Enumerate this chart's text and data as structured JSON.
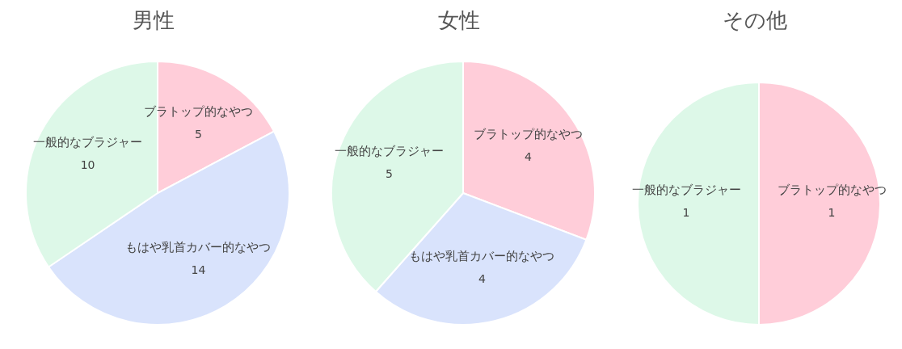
{
  "chart_data": [
    {
      "type": "pie",
      "title": "男性",
      "categories": [
        "ブラトップ的なやつ",
        "もはや乳首カバー的なやつ",
        "一般的なブラジャー"
      ],
      "values": [
        5,
        14,
        10
      ],
      "colors": [
        "#ffcdd9",
        "#d9e3fc",
        "#ddf8e8"
      ],
      "data_labels": true,
      "legend": false
    },
    {
      "type": "pie",
      "title": "女性",
      "categories": [
        "ブラトップ的なやつ",
        "もはや乳首カバー的なやつ",
        "一般的なブラジャー"
      ],
      "values": [
        4,
        4,
        5
      ],
      "colors": [
        "#ffcdd9",
        "#d9e3fc",
        "#ddf8e8"
      ],
      "data_labels": true,
      "legend": false
    },
    {
      "type": "pie",
      "title": "その他",
      "categories": [
        "ブラトップ的なやつ",
        "一般的なブラジャー"
      ],
      "values": [
        1,
        1
      ],
      "colors": [
        "#ffcdd9",
        "#ddf8e8"
      ],
      "data_labels": true,
      "legend": false
    }
  ]
}
